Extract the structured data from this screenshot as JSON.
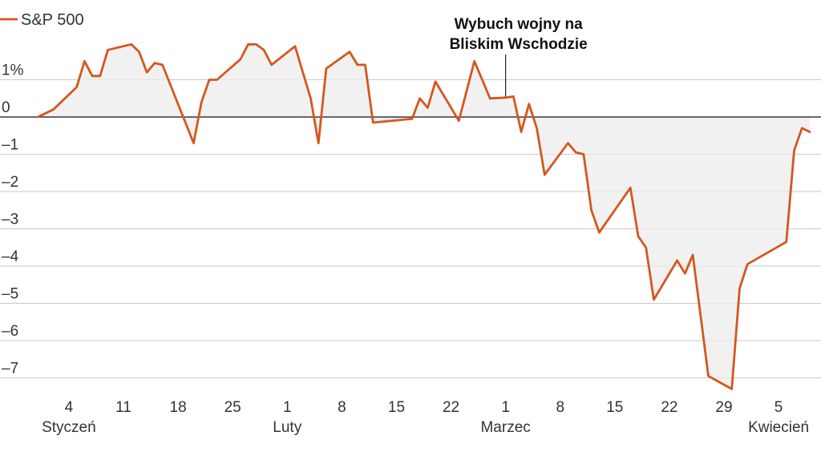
{
  "chart_data": {
    "type": "line",
    "title": "",
    "xlabel": "",
    "ylabel": "",
    "ylim": [
      -7.5,
      2.3
    ],
    "y_ticks": [
      {
        "value": 1,
        "label": "1%"
      },
      {
        "value": 0,
        "label": "0"
      },
      {
        "value": -1,
        "label": "–1"
      },
      {
        "value": -2,
        "label": "–2"
      },
      {
        "value": -3,
        "label": "–3"
      },
      {
        "value": -4,
        "label": "–4"
      },
      {
        "value": -5,
        "label": "–5"
      },
      {
        "value": -6,
        "label": "–6"
      },
      {
        "value": -7,
        "label": "–7"
      }
    ],
    "x_ticks": [
      {
        "day": 4,
        "label": "4"
      },
      {
        "day": 11,
        "label": "11"
      },
      {
        "day": 18,
        "label": "18"
      },
      {
        "day": 25,
        "label": "25"
      },
      {
        "day": 32,
        "label": "1"
      },
      {
        "day": 39,
        "label": "8"
      },
      {
        "day": 46,
        "label": "15"
      },
      {
        "day": 53,
        "label": "22"
      },
      {
        "day": 60,
        "label": "1"
      },
      {
        "day": 67,
        "label": "8"
      },
      {
        "day": 74,
        "label": "15"
      },
      {
        "day": 81,
        "label": "22"
      },
      {
        "day": 88,
        "label": "29"
      },
      {
        "day": 95,
        "label": "5"
      }
    ],
    "months": [
      {
        "day": 4,
        "label": "Styczeń"
      },
      {
        "day": 32,
        "label": "Luty"
      },
      {
        "day": 60,
        "label": "Marzec"
      },
      {
        "day": 95,
        "label": "Kwiecień"
      }
    ],
    "grid": true,
    "legend_position": "top-left",
    "series": [
      {
        "name": "S&P 500",
        "color": "#d4571e",
        "points": [
          [
            0,
            0
          ],
          [
            2,
            0.2
          ],
          [
            5,
            0.8
          ],
          [
            6,
            1.5
          ],
          [
            7,
            1.1
          ],
          [
            8,
            1.1
          ],
          [
            9,
            1.8
          ],
          [
            12,
            1.95
          ],
          [
            13,
            1.75
          ],
          [
            14,
            1.2
          ],
          [
            15,
            1.45
          ],
          [
            16,
            1.4
          ],
          [
            20,
            -0.7
          ],
          [
            21,
            0.4
          ],
          [
            22,
            1.0
          ],
          [
            23,
            1.0
          ],
          [
            26,
            1.55
          ],
          [
            27,
            1.95
          ],
          [
            28,
            1.95
          ],
          [
            29,
            1.8
          ],
          [
            30,
            1.4
          ],
          [
            33,
            1.9
          ],
          [
            34,
            1.2
          ],
          [
            35,
            0.5
          ],
          [
            36,
            -0.7
          ],
          [
            37,
            1.3
          ],
          [
            40,
            1.75
          ],
          [
            41,
            1.4
          ],
          [
            42,
            1.4
          ],
          [
            43,
            -0.15
          ],
          [
            48,
            -0.05
          ],
          [
            49,
            0.5
          ],
          [
            50,
            0.25
          ],
          [
            51,
            0.95
          ],
          [
            54,
            -0.1
          ],
          [
            56,
            1.5
          ],
          [
            58,
            0.5
          ],
          [
            60,
            0.52
          ],
          [
            61,
            0.55
          ],
          [
            62,
            -0.4
          ],
          [
            63,
            0.35
          ],
          [
            64,
            -0.3
          ],
          [
            65,
            -1.55
          ],
          [
            68,
            -0.7
          ],
          [
            69,
            -0.95
          ],
          [
            70,
            -1.0
          ],
          [
            71,
            -2.5
          ],
          [
            72,
            -3.1
          ],
          [
            75,
            -2.2
          ],
          [
            76,
            -1.9
          ],
          [
            77,
            -3.2
          ],
          [
            78,
            -3.5
          ],
          [
            79,
            -4.9
          ],
          [
            82,
            -3.85
          ],
          [
            83,
            -4.2
          ],
          [
            84,
            -3.7
          ],
          [
            86,
            -6.95
          ],
          [
            89,
            -7.3
          ],
          [
            90,
            -4.6
          ],
          [
            91,
            -3.95
          ],
          [
            96,
            -3.35
          ],
          [
            97,
            -0.9
          ],
          [
            98,
            -0.3
          ],
          [
            99,
            -0.4
          ]
        ]
      }
    ],
    "annotations": [
      {
        "day": 60,
        "value": 0.5,
        "lines": [
          "Wybuch wojny na",
          "Bliskim Wschodzie"
        ]
      }
    ]
  },
  "legend": {
    "label": "S&P 500"
  }
}
